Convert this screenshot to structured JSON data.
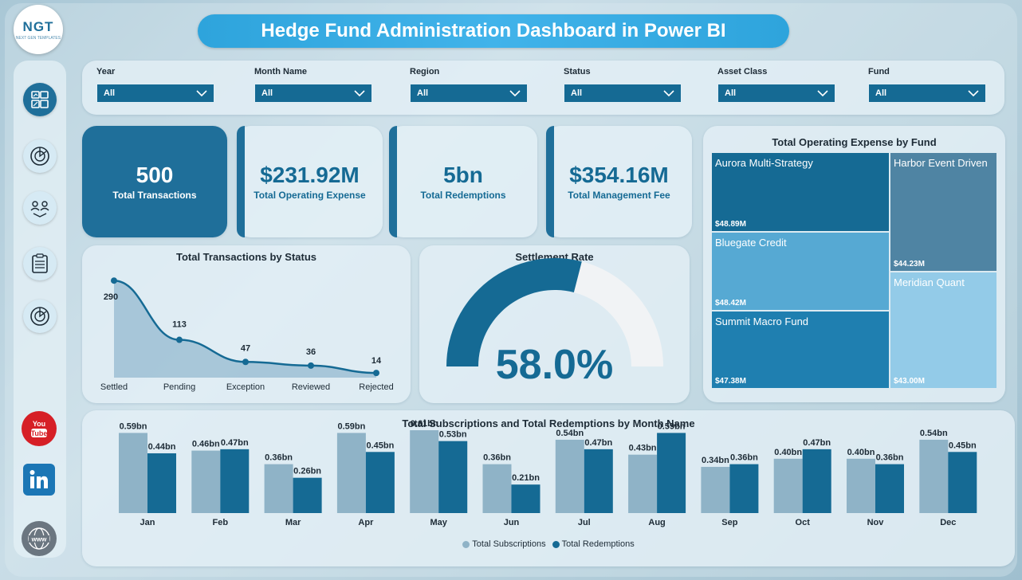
{
  "header": {
    "title": "Hedge Fund Administration Dashboard in Power BI"
  },
  "logo": {
    "text": "NGT",
    "subtext": "NEXT GEN TEMPLATES"
  },
  "sidebar": {
    "icons": [
      "dashboard-icon",
      "analytics-icon",
      "team-icon",
      "checklist-icon",
      "target-icon"
    ],
    "social": [
      {
        "name": "youtube-icon",
        "label": "You\nTube"
      },
      {
        "name": "linkedin-icon",
        "label": "in"
      },
      {
        "name": "website-icon",
        "label": "www"
      }
    ]
  },
  "filters": [
    {
      "label": "Year",
      "value": "All"
    },
    {
      "label": "Month Name",
      "value": "All"
    },
    {
      "label": "Region",
      "value": "All"
    },
    {
      "label": "Status",
      "value": "All"
    },
    {
      "label": "Asset Class",
      "value": "All"
    },
    {
      "label": "Fund",
      "value": "All"
    }
  ],
  "kpis": [
    {
      "value": "500",
      "label": "Total Transactions"
    },
    {
      "value": "$231.92M",
      "label": "Total Operating Expense"
    },
    {
      "value": "5bn",
      "label": "Total Redemptions"
    },
    {
      "value": "$354.16M",
      "label": "Total Management Fee"
    }
  ],
  "colors": {
    "dark": "#156a94",
    "mid": "#1f7fb0",
    "light": "#8fb3c7",
    "lighter": "#a5d3ea"
  },
  "status_chart": {
    "title": "Total Transactions by Status",
    "chart_data": {
      "type": "area",
      "categories": [
        "Settled",
        "Pending",
        "Exception",
        "Reviewed",
        "Rejected"
      ],
      "values": [
        290,
        113,
        47,
        36,
        14
      ],
      "labels": [
        "290",
        "113",
        "47",
        "36",
        "14"
      ]
    }
  },
  "settlement": {
    "title": "Settlement Rate",
    "value_label": "58.0%",
    "chart_data": {
      "type": "gauge",
      "value": 0.58
    }
  },
  "treemap": {
    "title": "Total Operating Expense by Fund",
    "chart_data": {
      "type": "treemap",
      "items": [
        {
          "name": "Aurora Multi-Strategy",
          "value": 48.89,
          "label": "$48.89M",
          "color": "#156a94"
        },
        {
          "name": "Bluegate Credit",
          "value": 48.42,
          "label": "$48.42M",
          "color": "#56a9d3"
        },
        {
          "name": "Summit Macro Fund",
          "value": 47.38,
          "label": "$47.38M",
          "color": "#1f7fb0"
        },
        {
          "name": "Harbor Event Driven",
          "value": 44.23,
          "label": "$44.23M",
          "color": "#4f84a3"
        },
        {
          "name": "Meridian Quant",
          "value": 43.0,
          "label": "$43.00M",
          "color": "#93cbe8"
        }
      ]
    }
  },
  "monthly": {
    "title": "Total Subscriptions and Total Redemptions by Month Name",
    "legend": [
      "Total Subscriptions",
      "Total Redemptions"
    ],
    "chart_data": {
      "type": "bar",
      "categories": [
        "Jan",
        "Feb",
        "Mar",
        "Apr",
        "May",
        "Jun",
        "Jul",
        "Aug",
        "Sep",
        "Oct",
        "Nov",
        "Dec"
      ],
      "series": [
        {
          "name": "Total Subscriptions",
          "values": [
            0.59,
            0.46,
            0.36,
            0.59,
            0.61,
            0.36,
            0.54,
            0.43,
            0.34,
            0.4,
            0.4,
            0.54
          ],
          "labels": [
            "0.59bn",
            "0.46bn",
            "0.36bn",
            "0.59bn",
            "0.61bn",
            "0.36bn",
            "0.54bn",
            "0.43bn",
            "0.34bn",
            "0.40bn",
            "0.40bn",
            "0.54bn"
          ]
        },
        {
          "name": "Total Redemptions",
          "values": [
            0.44,
            0.47,
            0.26,
            0.45,
            0.53,
            0.21,
            0.47,
            0.59,
            0.36,
            0.47,
            0.36,
            0.45
          ],
          "labels": [
            "0.44bn",
            "0.47bn",
            "0.26bn",
            "0.45bn",
            "0.53bn",
            "0.21bn",
            "0.47bn",
            "0.59bn",
            "0.36bn",
            "0.47bn",
            "0.36bn",
            "0.45bn"
          ]
        }
      ]
    }
  }
}
